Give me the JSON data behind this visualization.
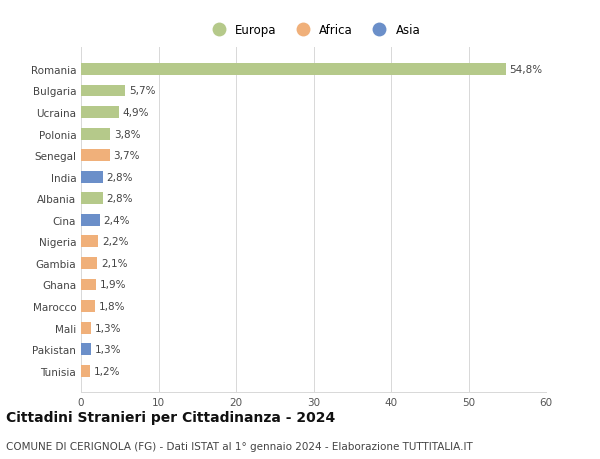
{
  "countries": [
    "Romania",
    "Bulgaria",
    "Ucraina",
    "Polonia",
    "Senegal",
    "India",
    "Albania",
    "Cina",
    "Nigeria",
    "Gambia",
    "Ghana",
    "Marocco",
    "Mali",
    "Pakistan",
    "Tunisia"
  ],
  "values": [
    54.8,
    5.7,
    4.9,
    3.8,
    3.7,
    2.8,
    2.8,
    2.4,
    2.2,
    2.1,
    1.9,
    1.8,
    1.3,
    1.3,
    1.2
  ],
  "labels": [
    "54,8%",
    "5,7%",
    "4,9%",
    "3,8%",
    "3,7%",
    "2,8%",
    "2,8%",
    "2,4%",
    "2,2%",
    "2,1%",
    "1,9%",
    "1,8%",
    "1,3%",
    "1,3%",
    "1,2%"
  ],
  "continents": [
    "Europa",
    "Europa",
    "Europa",
    "Europa",
    "Africa",
    "Asia",
    "Europa",
    "Asia",
    "Africa",
    "Africa",
    "Africa",
    "Africa",
    "Africa",
    "Asia",
    "Africa"
  ],
  "colors": {
    "Europa": "#b5c98a",
    "Africa": "#f0b07a",
    "Asia": "#6b8fc9"
  },
  "xlim": [
    0,
    60
  ],
  "xticks": [
    0,
    10,
    20,
    30,
    40,
    50,
    60
  ],
  "bg_color": "#ffffff",
  "grid_color": "#d8d8d8",
  "title": "Cittadini Stranieri per Cittadinanza - 2024",
  "subtitle": "COMUNE DI CERIGNOLA (FG) - Dati ISTAT al 1° gennaio 2024 - Elaborazione TUTTITALIA.IT",
  "title_fontsize": 10,
  "subtitle_fontsize": 7.5,
  "label_fontsize": 7.5,
  "tick_fontsize": 7.5,
  "legend_fontsize": 8.5
}
